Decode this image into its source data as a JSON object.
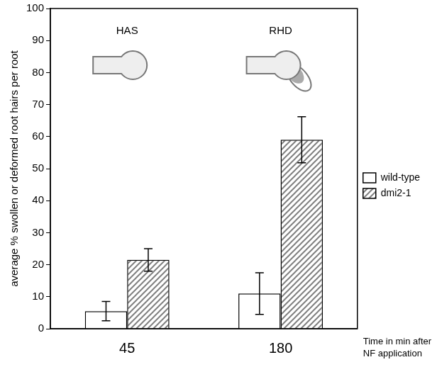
{
  "chart_data": {
    "type": "bar",
    "categories": [
      "45",
      "180"
    ],
    "series": [
      {
        "name": "wild-type",
        "color": "#ffffff",
        "values": [
          5.5,
          11
        ],
        "errors": [
          3,
          6.5
        ]
      },
      {
        "name": "dmi2-1",
        "color": "#808080",
        "values": [
          21.5,
          59
        ],
        "errors": [
          3.5,
          7.2
        ]
      }
    ],
    "x_label": "Time in min after NF application",
    "y_label": "average % swollen or deformed root hairs per root",
    "ylim": [
      0,
      100
    ],
    "yticks": [
      0,
      10,
      20,
      30,
      40,
      50,
      60,
      70,
      80,
      90,
      100
    ],
    "grid": false,
    "legend": "right",
    "annotations": [
      {
        "text": "HAS",
        "x": "45"
      },
      {
        "text": "RHD",
        "x": "180"
      }
    ]
  }
}
